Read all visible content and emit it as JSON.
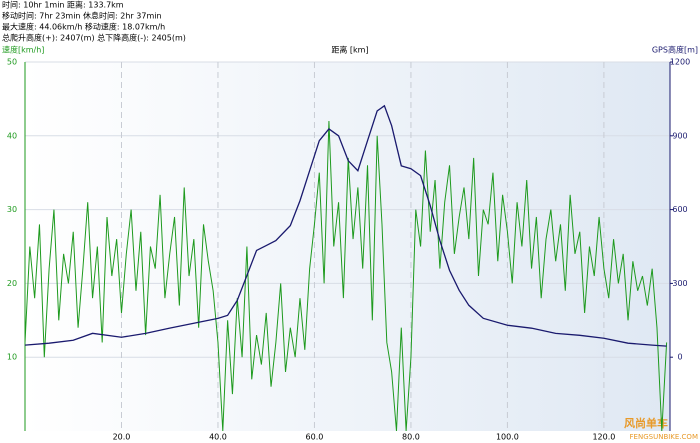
{
  "chart_data": {
    "type": "line",
    "stats": [
      "时间: 10hr 1min   距离: 133.7km",
      "移动时间: 7hr 23min   休息时间: 2hr 37min",
      "最大速度: 44.06km/h   移动速度: 18.07km/h",
      "总爬升高度(+): 2407(m)   总下降高度(-): 2405(m)"
    ],
    "y_label": "速度[km/h]",
    "x_label": "距离 [km]",
    "y2_label": "GPS高度[m]",
    "watermark": [
      "风尚单车",
      "FENGSUNBIKE.COM"
    ],
    "xlim": [
      0,
      133.7
    ],
    "xticks": [
      {
        "value": 20,
        "label": "20.0"
      },
      {
        "value": 40,
        "label": "40.0"
      },
      {
        "value": 60,
        "label": "60.0"
      },
      {
        "value": 80,
        "label": "80.0"
      },
      {
        "value": 100,
        "label": "100.0"
      },
      {
        "value": 120,
        "label": "120.0"
      }
    ],
    "ylim": [
      0,
      50
    ],
    "yticks": [
      10,
      20,
      30,
      40,
      50
    ],
    "y2lim": [
      -300,
      1200
    ],
    "y2ticks": [
      0,
      300,
      600,
      900,
      1200
    ],
    "grid": true,
    "series": [
      {
        "color": "#1e9a1e",
        "axis": "y",
        "x": [
          0,
          1,
          2,
          3,
          4,
          5,
          6,
          7,
          8,
          9,
          10,
          11,
          12,
          13,
          14,
          15,
          16,
          17,
          18,
          19,
          20,
          21,
          22,
          23,
          24,
          25,
          26,
          27,
          28,
          29,
          30,
          31,
          32,
          33,
          34,
          35,
          36,
          37,
          38,
          39,
          40,
          41,
          42,
          43,
          44,
          45,
          46,
          47,
          48,
          49,
          50,
          51,
          52,
          53,
          54,
          55,
          56,
          57,
          58,
          59,
          60,
          61,
          62,
          63,
          64,
          65,
          66,
          67,
          68,
          69,
          70,
          71,
          72,
          73,
          74,
          75,
          76,
          77,
          78,
          79,
          80,
          81,
          82,
          83,
          84,
          85,
          86,
          87,
          88,
          89,
          90,
          91,
          92,
          93,
          94,
          95,
          96,
          97,
          98,
          99,
          100,
          101,
          102,
          103,
          104,
          105,
          106,
          107,
          108,
          109,
          110,
          111,
          112,
          113,
          114,
          115,
          116,
          117,
          118,
          119,
          120,
          121,
          122,
          123,
          124,
          125,
          126,
          127,
          128,
          129,
          130,
          131,
          132,
          133
        ],
        "values": [
          12,
          25,
          18,
          28,
          10,
          22,
          30,
          15,
          24,
          20,
          27,
          14,
          22,
          31,
          18,
          25,
          12,
          29,
          21,
          26,
          16,
          24,
          30,
          19,
          27,
          13,
          25,
          22,
          32,
          18,
          24,
          29,
          17,
          33,
          21,
          26,
          14,
          28,
          23,
          19,
          12,
          0,
          15,
          5,
          18,
          10,
          25,
          7,
          13,
          9,
          16,
          6,
          12,
          20,
          8,
          14,
          10,
          18,
          11,
          22,
          28,
          35,
          20,
          42,
          25,
          31,
          18,
          37,
          26,
          33,
          22,
          36,
          15,
          40,
          28,
          12,
          8,
          0,
          14,
          0,
          10,
          30,
          25,
          38,
          27,
          34,
          22,
          31,
          36,
          24,
          29,
          33,
          26,
          37,
          21,
          30,
          28,
          35,
          23,
          32,
          27,
          20,
          31,
          25,
          34,
          22,
          29,
          18,
          26,
          30,
          23,
          28,
          19,
          32,
          24,
          27,
          16,
          25,
          21,
          29,
          22,
          18,
          26,
          20,
          24,
          15,
          23,
          19,
          21,
          17,
          22,
          14,
          0,
          12
        ]
      },
      {
        "color": "#1a1a6e",
        "axis": "y2",
        "x": [
          0,
          5,
          10,
          14,
          20,
          25,
          30,
          35,
          40,
          42,
          44,
          46,
          48,
          50,
          52,
          55,
          57,
          59,
          61,
          63,
          65,
          67,
          69,
          71,
          73,
          74.5,
          76,
          78,
          80,
          82,
          84,
          86,
          88,
          90,
          92,
          95,
          100,
          105,
          110,
          115,
          120,
          125,
          130,
          133
        ],
        "values": [
          49,
          57,
          69,
          97,
          81,
          97,
          118,
          138,
          158,
          170,
          231,
          332,
          434,
          454,
          474,
          535,
          636,
          758,
          880,
          928,
          900,
          799,
          758,
          880,
          1001,
          1022,
          941,
          778,
          766,
          738,
          616,
          474,
          353,
          272,
          211,
          158,
          130,
          118,
          97,
          89,
          77,
          57,
          49,
          45
        ]
      }
    ]
  }
}
